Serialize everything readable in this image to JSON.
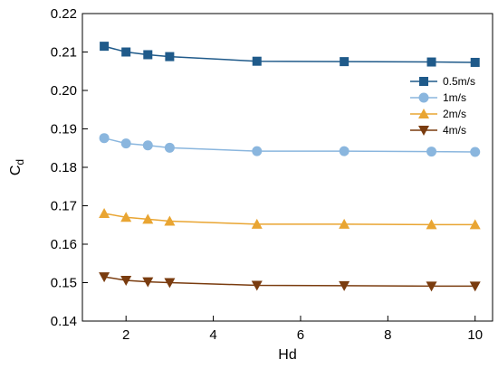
{
  "chart_data": {
    "type": "line",
    "title": "",
    "xlabel": "Hd",
    "ylabel": "C",
    "ylabel_subscript": "d",
    "xlim": [
      1,
      10.4
    ],
    "ylim": [
      0.14,
      0.22
    ],
    "xticks": [
      2,
      4,
      6,
      8,
      10
    ],
    "yticks": [
      0.14,
      0.15,
      0.16,
      0.17,
      0.18,
      0.19,
      0.2,
      0.21,
      0.22
    ],
    "ytick_labels": [
      "0.14",
      "0.15",
      "0.16",
      "0.17",
      "0.18",
      "0.19",
      "0.20",
      "0.21",
      "0.22"
    ],
    "grid": false,
    "legend_position": "top-right",
    "x": [
      1.5,
      2,
      2.5,
      3,
      5,
      7,
      9,
      10
    ],
    "series": [
      {
        "name": "0.5m/s",
        "color": "#1f5a8a",
        "marker": "square",
        "values": [
          0.2115,
          0.21,
          0.2093,
          0.2088,
          0.2076,
          0.2075,
          0.2074,
          0.2073
        ]
      },
      {
        "name": "1m/s",
        "color": "#8ab6de",
        "marker": "circle",
        "values": [
          0.1876,
          0.1862,
          0.1857,
          0.1851,
          0.1842,
          0.1842,
          0.1841,
          0.184
        ]
      },
      {
        "name": "2m/s",
        "color": "#e9a532",
        "marker": "triangle-up",
        "values": [
          0.168,
          0.167,
          0.1665,
          0.166,
          0.1652,
          0.1652,
          0.1651,
          0.1651
        ]
      },
      {
        "name": "4m/s",
        "color": "#7a3c0f",
        "marker": "triangle-down",
        "values": [
          0.1515,
          0.1506,
          0.1502,
          0.15,
          0.1493,
          0.1492,
          0.1491,
          0.1491
        ]
      }
    ]
  }
}
